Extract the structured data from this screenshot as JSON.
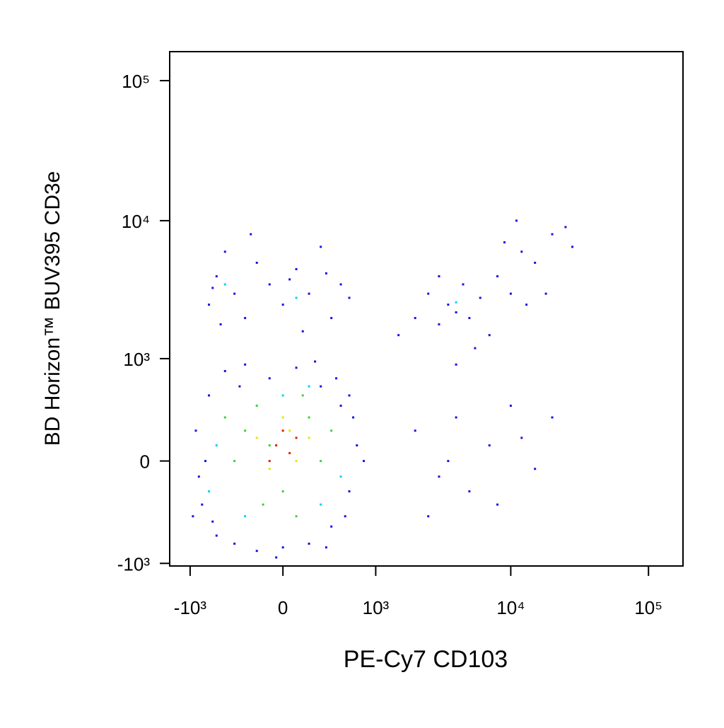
{
  "chart_data": {
    "type": "scatter",
    "xlabel": "PE-Cy7 CD103",
    "ylabel": "BD Horizon™ BUV395 CD3e",
    "xscale": "biexponential",
    "yscale": "biexponential",
    "xlim": [
      -1440,
      178000
    ],
    "ylim": [
      -1047,
      161000
    ],
    "xticks": [
      {
        "value": -1000,
        "label": "-10³"
      },
      0,
      {
        "value": 1000,
        "label": "10³"
      },
      {
        "value": 10000,
        "label": "10⁴"
      },
      {
        "value": 100000,
        "label": "10⁵"
      }
    ],
    "yticks": [
      {
        "value": -1000,
        "label": "-10³"
      },
      0,
      {
        "value": 1000,
        "label": "10³"
      },
      {
        "value": 10000,
        "label": "10⁴"
      },
      {
        "value": 100000,
        "label": "10⁵"
      }
    ],
    "series": [
      {
        "color": "#1414e6",
        "x": [
          -900,
          -800,
          -700,
          -600,
          -500,
          -400,
          -300,
          -200,
          -100,
          0,
          100,
          200,
          300,
          400,
          500,
          600,
          700,
          650,
          -850,
          -750,
          550,
          450,
          -650,
          350,
          -350,
          800,
          -950,
          250,
          -50,
          600,
          -700,
          -600,
          -500,
          -400,
          -300,
          -200,
          -100,
          0,
          100,
          200,
          300,
          400,
          500,
          600,
          -550,
          150,
          -250,
          50,
          350,
          -650,
          2000,
          2500,
          3000,
          3500,
          4000,
          4500,
          5000,
          6000,
          7000,
          8000,
          10000,
          12000,
          15000,
          20000,
          25000,
          18000,
          9000,
          1500,
          3000,
          5500,
          13000,
          28000,
          11000,
          4000,
          2000,
          3000,
          4000,
          5000,
          7000,
          10000,
          15000,
          20000,
          3500,
          8000,
          12000,
          2500
        ],
        "values": [
          200,
          -300,
          500,
          -600,
          800,
          -700,
          900,
          -800,
          700,
          -750,
          850,
          -700,
          600,
          -500,
          400,
          -200,
          100,
          300,
          -100,
          0,
          -400,
          700,
          -450,
          -750,
          600,
          0,
          -400,
          950,
          -900,
          500,
          2500,
          4000,
          6000,
          3000,
          2000,
          5000,
          3500,
          2500,
          4500,
          3000,
          6500,
          2000,
          3500,
          2800,
          1800,
          1600,
          8000,
          3800,
          4200,
          3300,
          2000,
          3000,
          1800,
          2500,
          2200,
          3500,
          2000,
          2800,
          1500,
          4000,
          3000,
          6000,
          5000,
          8000,
          9000,
          3000,
          7000,
          1500,
          4000,
          1200,
          2500,
          6500,
          10000,
          900,
          200,
          -100,
          300,
          -200,
          100,
          400,
          -50,
          300,
          0,
          -300,
          150,
          -400
        ]
      },
      {
        "color": "#00d2ff",
        "x": [
          -600,
          -300,
          200,
          500,
          -500,
          100,
          4000,
          -700,
          300,
          0
        ],
        "values": [
          100,
          -400,
          600,
          -100,
          3500,
          2800,
          2600,
          -200,
          -300,
          500
        ]
      },
      {
        "color": "#3cd23c",
        "x": [
          -400,
          -200,
          0,
          200,
          300,
          -300,
          100,
          -100,
          400,
          -500,
          150,
          -150
        ],
        "values": [
          0,
          400,
          -200,
          300,
          0,
          200,
          -400,
          100,
          200,
          300,
          500,
          -300
        ]
      },
      {
        "color": "#e6e600",
        "x": [
          -200,
          0,
          100,
          200,
          -100,
          50
        ],
        "values": [
          150,
          300,
          0,
          150,
          -50,
          200
        ]
      },
      {
        "color": "#e01e00",
        "x": [
          -50,
          50,
          0,
          100,
          -100
        ],
        "values": [
          100,
          50,
          200,
          150,
          0
        ]
      }
    ]
  }
}
